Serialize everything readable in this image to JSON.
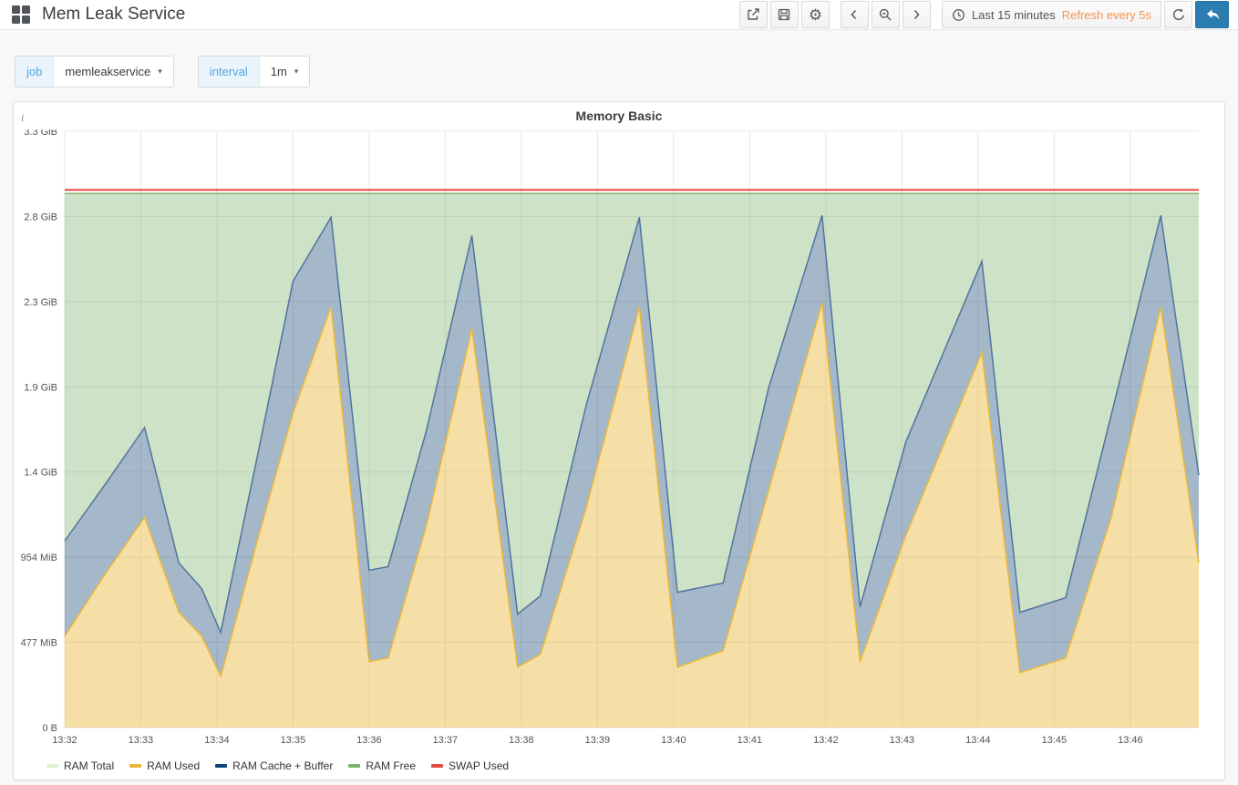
{
  "navbar": {
    "title": "Mem Leak Service",
    "time_range": "Last 15 minutes",
    "refresh_text": "Refresh every 5s",
    "accent_orange": "#F9934E",
    "back_button_color": "#2B7CB0"
  },
  "icons": {
    "caret_down": "▾",
    "gear": "⚙",
    "info": "i"
  },
  "variables": {
    "job": {
      "label": "job",
      "value": "memleakservice"
    },
    "interval": {
      "label": "interval",
      "value": "1m"
    }
  },
  "panel": {
    "title": "Memory Basic",
    "legend": [
      {
        "label": "RAM Total",
        "color": "#DFF4CF"
      },
      {
        "label": "RAM Used",
        "color": "#EAB839"
      },
      {
        "label": "RAM Cache + Buffer",
        "color": "#0A437C"
      },
      {
        "label": "RAM Free",
        "color": "#7EB26D"
      },
      {
        "label": "SWAP Used",
        "color": "#E24D42"
      }
    ]
  },
  "chart_data": {
    "type": "area",
    "title": "Memory Basic",
    "stacked": true,
    "legend_position": "bottom",
    "grid": true,
    "ylim_gib": [
      0,
      3.26
    ],
    "t_max": 14.9,
    "y_ticks": [
      {
        "label": "3.3 GiB",
        "gib": 3.26
      },
      {
        "label": "2.8 GiB",
        "gib": 2.794
      },
      {
        "label": "2.3 GiB",
        "gib": 2.329
      },
      {
        "label": "1.9 GiB",
        "gib": 1.863
      },
      {
        "label": "1.4 GiB",
        "gib": 1.397
      },
      {
        "label": "954 MiB",
        "gib": 0.931
      },
      {
        "label": "477 MiB",
        "gib": 0.466
      },
      {
        "label": "0 B",
        "gib": 0
      }
    ],
    "x_ticks": [
      "13:32",
      "13:33",
      "13:34",
      "13:35",
      "13:36",
      "13:37",
      "13:38",
      "13:39",
      "13:40",
      "13:41",
      "13:42",
      "13:43",
      "13:44",
      "13:45",
      "13:46"
    ],
    "free_top_gib": 2.92,
    "swap_used_gib": 2.94,
    "points": [
      {
        "t": 0.0,
        "used": 0.5,
        "cache": 1.02
      },
      {
        "t": 0.55,
        "used": 0.85,
        "cache": 1.34
      },
      {
        "t": 1.05,
        "used": 1.15,
        "cache": 1.64
      },
      {
        "t": 1.5,
        "used": 0.63,
        "cache": 0.9
      },
      {
        "t": 1.8,
        "used": 0.5,
        "cache": 0.76
      },
      {
        "t": 2.05,
        "used": 0.28,
        "cache": 0.52
      },
      {
        "t": 2.55,
        "used": 1.05,
        "cache": 1.52
      },
      {
        "t": 3.0,
        "used": 1.72,
        "cache": 2.44
      },
      {
        "t": 3.5,
        "used": 2.3,
        "cache": 2.79
      },
      {
        "t": 4.0,
        "used": 0.36,
        "cache": 0.86
      },
      {
        "t": 4.25,
        "used": 0.38,
        "cache": 0.88
      },
      {
        "t": 4.75,
        "used": 1.1,
        "cache": 1.62
      },
      {
        "t": 5.35,
        "used": 2.18,
        "cache": 2.69
      },
      {
        "t": 5.95,
        "used": 0.33,
        "cache": 0.62
      },
      {
        "t": 6.25,
        "used": 0.4,
        "cache": 0.72
      },
      {
        "t": 6.85,
        "used": 1.2,
        "cache": 1.76
      },
      {
        "t": 7.55,
        "used": 2.3,
        "cache": 2.79
      },
      {
        "t": 8.05,
        "used": 0.33,
        "cache": 0.74
      },
      {
        "t": 8.65,
        "used": 0.42,
        "cache": 0.79
      },
      {
        "t": 9.25,
        "used": 1.3,
        "cache": 1.86
      },
      {
        "t": 9.95,
        "used": 2.32,
        "cache": 2.8
      },
      {
        "t": 10.45,
        "used": 0.36,
        "cache": 0.66
      },
      {
        "t": 11.05,
        "used": 1.05,
        "cache": 1.56
      },
      {
        "t": 12.05,
        "used": 2.05,
        "cache": 2.55
      },
      {
        "t": 12.55,
        "used": 0.3,
        "cache": 0.63
      },
      {
        "t": 13.15,
        "used": 0.38,
        "cache": 0.71
      },
      {
        "t": 13.75,
        "used": 1.15,
        "cache": 1.71
      },
      {
        "t": 14.4,
        "used": 2.3,
        "cache": 2.8
      },
      {
        "t": 14.9,
        "used": 0.9,
        "cache": 1.38
      }
    ],
    "colors": {
      "grid": "#e7e7e7",
      "used_fill": "rgba(234,184,57,0.45)",
      "used_line": "#EAB839",
      "cache_fill": "rgba(31,78,121,0.40)",
      "cache_line": "#4F749E",
      "free_fill": "rgba(126,178,109,0.38)",
      "free_line": "#7EB26D",
      "swap_line": "#E24D42"
    }
  }
}
